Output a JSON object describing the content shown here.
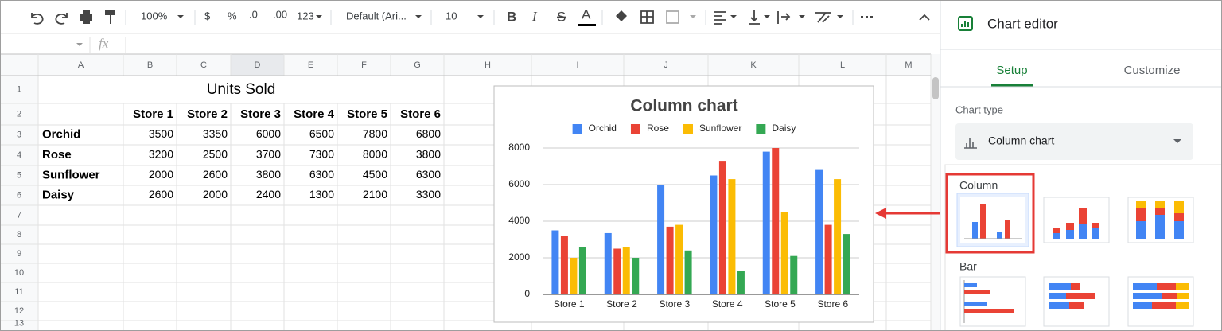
{
  "toolbar": {
    "zoom": "100%",
    "currency": "$",
    "percent": "%",
    "decrease_decimals": ".0",
    "increase_decimals": ".00",
    "more_formats": "123",
    "font": "Default (Ari...",
    "font_size": "10",
    "bold": "B",
    "italic": "I",
    "strikethrough": "S",
    "text_color": "A"
  },
  "formula_bar": {
    "fx_label": "fx"
  },
  "sheet": {
    "column_headers": [
      "A",
      "B",
      "C",
      "D",
      "E",
      "F",
      "G",
      "H",
      "I",
      "J",
      "K",
      "L",
      "M"
    ],
    "row_headers": [
      "1",
      "2",
      "3",
      "4",
      "5",
      "6",
      "7",
      "8",
      "9",
      "10",
      "11",
      "12",
      "13"
    ],
    "title": "Units Sold",
    "header_row": [
      "Store 1",
      "Store 2",
      "Store 3",
      "Store 4",
      "Store 5",
      "Store 6"
    ],
    "rows": [
      {
        "label": "Orchid",
        "values": [
          3500,
          3350,
          6000,
          6500,
          7800,
          6800
        ]
      },
      {
        "label": "Rose",
        "values": [
          3200,
          2500,
          3700,
          7300,
          8000,
          3800
        ]
      },
      {
        "label": "Sunflower",
        "values": [
          2000,
          2600,
          3800,
          6300,
          4500,
          6300
        ]
      },
      {
        "label": "Daisy",
        "values": [
          2600,
          2000,
          2400,
          1300,
          2100,
          3300
        ]
      }
    ]
  },
  "chart_data": {
    "type": "bar",
    "title": "Column chart",
    "categories": [
      "Store 1",
      "Store 2",
      "Store 3",
      "Store 4",
      "Store 5",
      "Store 6"
    ],
    "series": [
      {
        "name": "Orchid",
        "color": "#4285f4",
        "values": [
          3500,
          3350,
          6000,
          6500,
          7800,
          6800
        ]
      },
      {
        "name": "Rose",
        "color": "#ea4335",
        "values": [
          3200,
          2500,
          3700,
          7300,
          8000,
          3800
        ]
      },
      {
        "name": "Sunflower",
        "color": "#fbbc04",
        "values": [
          2000,
          2600,
          3800,
          6300,
          4500,
          6300
        ]
      },
      {
        "name": "Daisy",
        "color": "#34a853",
        "values": [
          2600,
          2000,
          2400,
          1300,
          2100,
          3300
        ]
      }
    ],
    "ylim": [
      0,
      8000
    ],
    "yticks": [
      0,
      2000,
      4000,
      6000,
      8000
    ],
    "grid": true,
    "legend": "top"
  },
  "editor": {
    "title": "Chart editor",
    "tabs": [
      "Setup",
      "Customize"
    ],
    "chart_type_label": "Chart type",
    "chart_type": "Column chart",
    "sections": [
      "Column",
      "Bar"
    ]
  }
}
